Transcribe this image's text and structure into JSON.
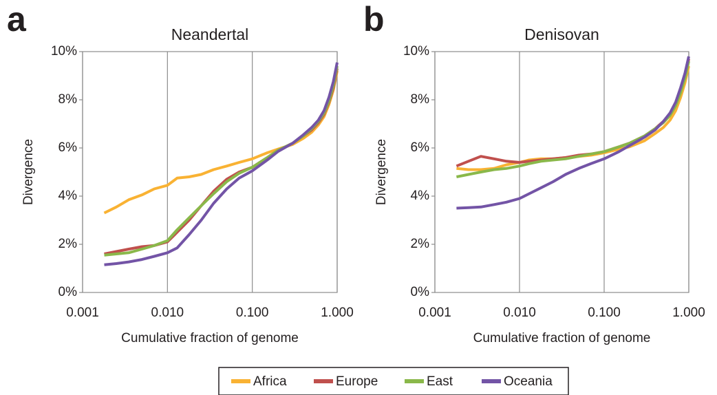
{
  "chart_data": [
    {
      "type": "line",
      "label": "a",
      "title": "Neandertal",
      "xlabel": "Cumulative fraction of genome",
      "ylabel": "Divergence",
      "xscale": "log",
      "grid": "x",
      "xlim": [
        0.001,
        1
      ],
      "xticks": [
        0.001,
        {
          "value": 0.01,
          "label": "0.010"
        },
        {
          "value": 0.1,
          "label": "0.100"
        },
        {
          "value": 1,
          "label": "1.000"
        }
      ],
      "ylim": [
        0,
        10
      ],
      "yticks": [
        {
          "value": 0,
          "label": "0%"
        },
        {
          "value": 2,
          "label": "2%"
        },
        {
          "value": 4,
          "label": "4%"
        },
        {
          "value": 6,
          "label": "6%"
        },
        {
          "value": 8,
          "label": "8%"
        },
        {
          "value": 10,
          "label": "10%"
        }
      ],
      "x": [
        0.0018,
        0.0025,
        0.0035,
        0.005,
        0.007,
        0.01,
        0.013,
        0.018,
        0.025,
        0.035,
        0.05,
        0.07,
        0.1,
        0.15,
        0.2,
        0.3,
        0.4,
        0.5,
        0.6,
        0.7,
        0.8,
        0.9,
        1.0
      ],
      "series": [
        {
          "name": "Africa",
          "color": "#f9b233",
          "values": [
            3.3,
            3.55,
            3.85,
            4.05,
            4.3,
            4.45,
            4.75,
            4.8,
            4.9,
            5.1,
            5.25,
            5.4,
            5.55,
            5.8,
            5.95,
            6.15,
            6.4,
            6.65,
            6.95,
            7.3,
            7.8,
            8.4,
            9.2
          ]
        },
        {
          "name": "Europe",
          "color": "#c0504d",
          "values": [
            1.6,
            1.7,
            1.8,
            1.9,
            1.95,
            2.1,
            2.5,
            3.0,
            3.6,
            4.2,
            4.7,
            5.0,
            5.2,
            5.6,
            5.9,
            6.2,
            6.5,
            6.75,
            7.05,
            7.4,
            7.9,
            8.5,
            9.3
          ]
        },
        {
          "name": "East",
          "color": "#8ab84a",
          "values": [
            1.55,
            1.6,
            1.65,
            1.8,
            1.95,
            2.15,
            2.6,
            3.1,
            3.6,
            4.1,
            4.6,
            4.95,
            5.2,
            5.6,
            5.9,
            6.2,
            6.5,
            6.8,
            7.1,
            7.45,
            7.95,
            8.6,
            9.4
          ]
        },
        {
          "name": "Oceania",
          "color": "#7354a6",
          "values": [
            1.15,
            1.2,
            1.27,
            1.37,
            1.5,
            1.65,
            1.85,
            2.4,
            3.0,
            3.7,
            4.3,
            4.75,
            5.05,
            5.5,
            5.85,
            6.2,
            6.55,
            6.85,
            7.15,
            7.55,
            8.1,
            8.75,
            9.55
          ]
        }
      ]
    },
    {
      "type": "line",
      "label": "b",
      "title": "Denisovan",
      "xlabel": "Cumulative fraction of genome",
      "ylabel": "Divergence",
      "xscale": "log",
      "grid": "x",
      "xlim": [
        0.001,
        1
      ],
      "xticks": [
        0.001,
        {
          "value": 0.01,
          "label": "0.010"
        },
        {
          "value": 0.1,
          "label": "0.100"
        },
        {
          "value": 1,
          "label": "1.000"
        }
      ],
      "ylim": [
        0,
        10
      ],
      "yticks": [
        {
          "value": 0,
          "label": "0%"
        },
        {
          "value": 2,
          "label": "2%"
        },
        {
          "value": 4,
          "label": "4%"
        },
        {
          "value": 6,
          "label": "6%"
        },
        {
          "value": 8,
          "label": "8%"
        },
        {
          "value": 10,
          "label": "10%"
        }
      ],
      "x": [
        0.0018,
        0.0025,
        0.0035,
        0.005,
        0.007,
        0.01,
        0.013,
        0.018,
        0.025,
        0.035,
        0.05,
        0.07,
        0.1,
        0.15,
        0.2,
        0.3,
        0.4,
        0.5,
        0.6,
        0.7,
        0.8,
        0.9,
        1.0
      ],
      "series": [
        {
          "name": "Africa",
          "color": "#f9b233",
          "values": [
            5.15,
            5.1,
            5.1,
            5.15,
            5.3,
            5.4,
            5.5,
            5.55,
            5.55,
            5.6,
            5.65,
            5.7,
            5.8,
            5.95,
            6.05,
            6.3,
            6.6,
            6.85,
            7.15,
            7.55,
            8.1,
            8.7,
            9.4
          ]
        },
        {
          "name": "Europe",
          "color": "#c0504d",
          "values": [
            5.25,
            5.45,
            5.65,
            5.55,
            5.45,
            5.4,
            5.45,
            5.5,
            5.55,
            5.6,
            5.7,
            5.75,
            5.85,
            6.05,
            6.2,
            6.5,
            6.8,
            7.1,
            7.4,
            7.8,
            8.35,
            9.0,
            9.7
          ]
        },
        {
          "name": "East",
          "color": "#8ab84a",
          "values": [
            4.8,
            4.9,
            5.0,
            5.1,
            5.15,
            5.25,
            5.35,
            5.45,
            5.5,
            5.55,
            5.65,
            5.75,
            5.85,
            6.05,
            6.2,
            6.5,
            6.8,
            7.05,
            7.35,
            7.75,
            8.3,
            8.9,
            9.6
          ]
        },
        {
          "name": "Oceania",
          "color": "#7354a6",
          "values": [
            3.5,
            3.52,
            3.55,
            3.65,
            3.75,
            3.9,
            4.1,
            4.35,
            4.6,
            4.9,
            5.15,
            5.35,
            5.55,
            5.85,
            6.1,
            6.45,
            6.75,
            7.1,
            7.45,
            7.9,
            8.5,
            9.1,
            9.8
          ]
        }
      ]
    }
  ]
}
